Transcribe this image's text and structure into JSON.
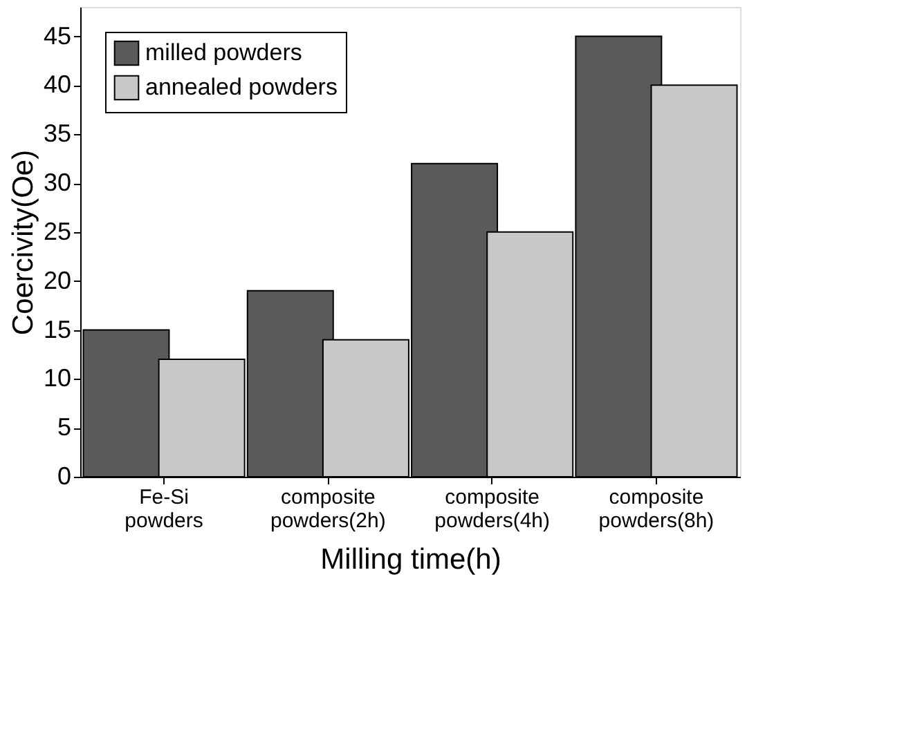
{
  "chart_data": {
    "type": "bar",
    "xlabel": "Milling time(h)",
    "ylabel": "Coercivity(Oe)",
    "categories": [
      "Fe-Si powders",
      "composite powders(2h)",
      "composite powders(4h)",
      "composite powders(8h)"
    ],
    "series": [
      {
        "name": "milled powders",
        "color": "#5a5a5a",
        "values": [
          15,
          19,
          32,
          45
        ]
      },
      {
        "name": "annealed powders",
        "color": "#c8c8c8",
        "values": [
          12,
          14,
          25,
          40
        ]
      }
    ],
    "ylim": [
      0,
      48
    ],
    "yticks": [
      0,
      5,
      10,
      15,
      20,
      25,
      30,
      35,
      40,
      45
    ],
    "grid": false,
    "legend": "top left"
  }
}
